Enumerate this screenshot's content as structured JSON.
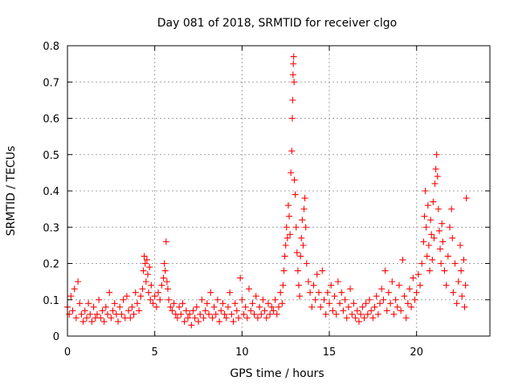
{
  "chart_data": {
    "type": "scatter",
    "title": "Day 081 of 2018, SRMTID for receiver clgo",
    "xlabel": "GPS time / hours",
    "ylabel": "SRMTID / TECUs",
    "xlim": [
      0,
      24.2
    ],
    "ylim": [
      0,
      0.8
    ],
    "x_ticks": [
      0,
      5,
      10,
      15,
      20
    ],
    "y_ticks": [
      0,
      0.1,
      0.2,
      0.3,
      0.4,
      0.5,
      0.6,
      0.7,
      0.8
    ],
    "grid": true,
    "marker": "+",
    "color": "#ff0000",
    "series": [
      {
        "name": "SRMTID",
        "points": [
          [
            0.0,
            0.08
          ],
          [
            0.1,
            0.06
          ],
          [
            0.2,
            0.11
          ],
          [
            0.3,
            0.07
          ],
          [
            0.4,
            0.13
          ],
          [
            0.5,
            0.05
          ],
          [
            0.6,
            0.15
          ],
          [
            0.7,
            0.09
          ],
          [
            0.8,
            0.06
          ],
          [
            0.9,
            0.04
          ],
          [
            1.0,
            0.07
          ],
          [
            1.1,
            0.05
          ],
          [
            1.2,
            0.09
          ],
          [
            1.3,
            0.06
          ],
          [
            1.4,
            0.04
          ],
          [
            1.5,
            0.08
          ],
          [
            1.6,
            0.05
          ],
          [
            1.7,
            0.06
          ],
          [
            1.8,
            0.1
          ],
          [
            1.9,
            0.05
          ],
          [
            2.0,
            0.07
          ],
          [
            2.1,
            0.04
          ],
          [
            2.2,
            0.08
          ],
          [
            2.3,
            0.06
          ],
          [
            2.4,
            0.12
          ],
          [
            2.5,
            0.05
          ],
          [
            2.6,
            0.07
          ],
          [
            2.7,
            0.09
          ],
          [
            2.8,
            0.06
          ],
          [
            2.9,
            0.04
          ],
          [
            3.0,
            0.08
          ],
          [
            3.1,
            0.06
          ],
          [
            3.2,
            0.1
          ],
          [
            3.3,
            0.05
          ],
          [
            3.4,
            0.11
          ],
          [
            3.5,
            0.07
          ],
          [
            3.6,
            0.05
          ],
          [
            3.7,
            0.08
          ],
          [
            3.8,
            0.06
          ],
          [
            3.9,
            0.12
          ],
          [
            4.0,
            0.09
          ],
          [
            4.1,
            0.07
          ],
          [
            4.2,
            0.11
          ],
          [
            4.3,
            0.13
          ],
          [
            4.35,
            0.18
          ],
          [
            4.4,
            0.22
          ],
          [
            4.45,
            0.2
          ],
          [
            4.5,
            0.15
          ],
          [
            4.55,
            0.21
          ],
          [
            4.6,
            0.17
          ],
          [
            4.65,
            0.12
          ],
          [
            4.7,
            0.19
          ],
          [
            4.75,
            0.1
          ],
          [
            4.8,
            0.14
          ],
          [
            4.9,
            0.09
          ],
          [
            5.0,
            0.11
          ],
          [
            5.1,
            0.08
          ],
          [
            5.2,
            0.12
          ],
          [
            5.3,
            0.1
          ],
          [
            5.4,
            0.14
          ],
          [
            5.5,
            0.16
          ],
          [
            5.55,
            0.2
          ],
          [
            5.6,
            0.18
          ],
          [
            5.65,
            0.26
          ],
          [
            5.7,
            0.15
          ],
          [
            5.75,
            0.13
          ],
          [
            5.8,
            0.1
          ],
          [
            5.9,
            0.08
          ],
          [
            6.0,
            0.07
          ],
          [
            6.1,
            0.09
          ],
          [
            6.2,
            0.06
          ],
          [
            6.3,
            0.05
          ],
          [
            6.4,
            0.08
          ],
          [
            6.5,
            0.06
          ],
          [
            6.6,
            0.09
          ],
          [
            6.7,
            0.04
          ],
          [
            6.8,
            0.07
          ],
          [
            6.9,
            0.05
          ],
          [
            7.0,
            0.06
          ],
          [
            7.1,
            0.03
          ],
          [
            7.2,
            0.07
          ],
          [
            7.3,
            0.05
          ],
          [
            7.4,
            0.08
          ],
          [
            7.5,
            0.04
          ],
          [
            7.6,
            0.06
          ],
          [
            7.7,
            0.1
          ],
          [
            7.8,
            0.05
          ],
          [
            7.9,
            0.07
          ],
          [
            8.0,
            0.09
          ],
          [
            8.1,
            0.06
          ],
          [
            8.2,
            0.12
          ],
          [
            8.3,
            0.05
          ],
          [
            8.4,
            0.08
          ],
          [
            8.5,
            0.06
          ],
          [
            8.6,
            0.1
          ],
          [
            8.7,
            0.04
          ],
          [
            8.8,
            0.07
          ],
          [
            8.9,
            0.09
          ],
          [
            9.0,
            0.06
          ],
          [
            9.1,
            0.05
          ],
          [
            9.2,
            0.08
          ],
          [
            9.3,
            0.12
          ],
          [
            9.4,
            0.06
          ],
          [
            9.5,
            0.04
          ],
          [
            9.6,
            0.09
          ],
          [
            9.7,
            0.07
          ],
          [
            9.8,
            0.05
          ],
          [
            9.9,
            0.16
          ],
          [
            10.0,
            0.1
          ],
          [
            10.1,
            0.06
          ],
          [
            10.2,
            0.08
          ],
          [
            10.3,
            0.05
          ],
          [
            10.4,
            0.13
          ],
          [
            10.5,
            0.07
          ],
          [
            10.6,
            0.09
          ],
          [
            10.7,
            0.06
          ],
          [
            10.8,
            0.11
          ],
          [
            10.9,
            0.05
          ],
          [
            11.0,
            0.08
          ],
          [
            11.1,
            0.06
          ],
          [
            11.2,
            0.1
          ],
          [
            11.3,
            0.07
          ],
          [
            11.4,
            0.05
          ],
          [
            11.5,
            0.09
          ],
          [
            11.6,
            0.06
          ],
          [
            11.7,
            0.08
          ],
          [
            11.8,
            0.07
          ],
          [
            11.9,
            0.1
          ],
          [
            12.0,
            0.06
          ],
          [
            12.1,
            0.08
          ],
          [
            12.2,
            0.12
          ],
          [
            12.3,
            0.09
          ],
          [
            12.35,
            0.14
          ],
          [
            12.4,
            0.18
          ],
          [
            12.45,
            0.22
          ],
          [
            12.5,
            0.25
          ],
          [
            12.55,
            0.3
          ],
          [
            12.6,
            0.27
          ],
          [
            12.65,
            0.36
          ],
          [
            12.7,
            0.33
          ],
          [
            12.75,
            0.28
          ],
          [
            12.8,
            0.45
          ],
          [
            12.85,
            0.51
          ],
          [
            12.88,
            0.6
          ],
          [
            12.9,
            0.65
          ],
          [
            12.92,
            0.72
          ],
          [
            12.94,
            0.75
          ],
          [
            12.96,
            0.77
          ],
          [
            12.98,
            0.7
          ],
          [
            13.0,
            0.43
          ],
          [
            13.05,
            0.39
          ],
          [
            13.1,
            0.3
          ],
          [
            13.15,
            0.23
          ],
          [
            13.2,
            0.18
          ],
          [
            13.25,
            0.14
          ],
          [
            13.3,
            0.11
          ],
          [
            13.35,
            0.22
          ],
          [
            13.4,
            0.27
          ],
          [
            13.45,
            0.32
          ],
          [
            13.5,
            0.25
          ],
          [
            13.55,
            0.35
          ],
          [
            13.6,
            0.38
          ],
          [
            13.65,
            0.3
          ],
          [
            13.7,
            0.2
          ],
          [
            13.8,
            0.15
          ],
          [
            13.9,
            0.12
          ],
          [
            14.0,
            0.08
          ],
          [
            14.1,
            0.14
          ],
          [
            14.2,
            0.1
          ],
          [
            14.3,
            0.17
          ],
          [
            14.4,
            0.12
          ],
          [
            14.5,
            0.08
          ],
          [
            14.6,
            0.18
          ],
          [
            14.7,
            0.1
          ],
          [
            14.8,
            0.06
          ],
          [
            14.9,
            0.12
          ],
          [
            15.0,
            0.09
          ],
          [
            15.1,
            0.14
          ],
          [
            15.2,
            0.07
          ],
          [
            15.3,
            0.11
          ],
          [
            15.4,
            0.06
          ],
          [
            15.5,
            0.15
          ],
          [
            15.6,
            0.09
          ],
          [
            15.7,
            0.12
          ],
          [
            15.8,
            0.07
          ],
          [
            15.9,
            0.1
          ],
          [
            16.0,
            0.05
          ],
          [
            16.1,
            0.08
          ],
          [
            16.2,
            0.13
          ],
          [
            16.3,
            0.06
          ],
          [
            16.4,
            0.09
          ],
          [
            16.5,
            0.05
          ],
          [
            16.6,
            0.07
          ],
          [
            16.7,
            0.04
          ],
          [
            16.8,
            0.06
          ],
          [
            16.9,
            0.08
          ],
          [
            17.0,
            0.05
          ],
          [
            17.1,
            0.09
          ],
          [
            17.2,
            0.06
          ],
          [
            17.3,
            0.1
          ],
          [
            17.4,
            0.07
          ],
          [
            17.5,
            0.05
          ],
          [
            17.6,
            0.08
          ],
          [
            17.7,
            0.11
          ],
          [
            17.8,
            0.06
          ],
          [
            17.9,
            0.09
          ],
          [
            18.0,
            0.13
          ],
          [
            18.1,
            0.1
          ],
          [
            18.2,
            0.18
          ],
          [
            18.3,
            0.07
          ],
          [
            18.4,
            0.12
          ],
          [
            18.5,
            0.09
          ],
          [
            18.6,
            0.15
          ],
          [
            18.7,
            0.06
          ],
          [
            18.8,
            0.1
          ],
          [
            18.9,
            0.08
          ],
          [
            19.0,
            0.14
          ],
          [
            19.1,
            0.07
          ],
          [
            19.2,
            0.21
          ],
          [
            19.3,
            0.11
          ],
          [
            19.4,
            0.05
          ],
          [
            19.5,
            0.09
          ],
          [
            19.6,
            0.13
          ],
          [
            19.7,
            0.08
          ],
          [
            19.8,
            0.16
          ],
          [
            19.9,
            0.1
          ],
          [
            20.0,
            0.12
          ],
          [
            20.1,
            0.17
          ],
          [
            20.2,
            0.14
          ],
          [
            20.3,
            0.2
          ],
          [
            20.4,
            0.26
          ],
          [
            20.45,
            0.33
          ],
          [
            20.5,
            0.4
          ],
          [
            20.55,
            0.3
          ],
          [
            20.6,
            0.22
          ],
          [
            20.65,
            0.36
          ],
          [
            20.7,
            0.25
          ],
          [
            20.75,
            0.18
          ],
          [
            20.8,
            0.32
          ],
          [
            20.85,
            0.28
          ],
          [
            20.9,
            0.21
          ],
          [
            20.95,
            0.37
          ],
          [
            21.0,
            0.27
          ],
          [
            21.05,
            0.42
          ],
          [
            21.1,
            0.46
          ],
          [
            21.15,
            0.5
          ],
          [
            21.2,
            0.44
          ],
          [
            21.25,
            0.35
          ],
          [
            21.3,
            0.29
          ],
          [
            21.35,
            0.24
          ],
          [
            21.4,
            0.2
          ],
          [
            21.45,
            0.31
          ],
          [
            21.5,
            0.26
          ],
          [
            21.6,
            0.18
          ],
          [
            21.7,
            0.14
          ],
          [
            21.8,
            0.22
          ],
          [
            21.9,
            0.3
          ],
          [
            22.0,
            0.35
          ],
          [
            22.05,
            0.27
          ],
          [
            22.1,
            0.12
          ],
          [
            22.2,
            0.2
          ],
          [
            22.3,
            0.09
          ],
          [
            22.4,
            0.15
          ],
          [
            22.5,
            0.25
          ],
          [
            22.55,
            0.18
          ],
          [
            22.6,
            0.11
          ],
          [
            22.7,
            0.21
          ],
          [
            22.75,
            0.08
          ],
          [
            22.8,
            0.14
          ],
          [
            22.85,
            0.38
          ]
        ]
      }
    ]
  }
}
